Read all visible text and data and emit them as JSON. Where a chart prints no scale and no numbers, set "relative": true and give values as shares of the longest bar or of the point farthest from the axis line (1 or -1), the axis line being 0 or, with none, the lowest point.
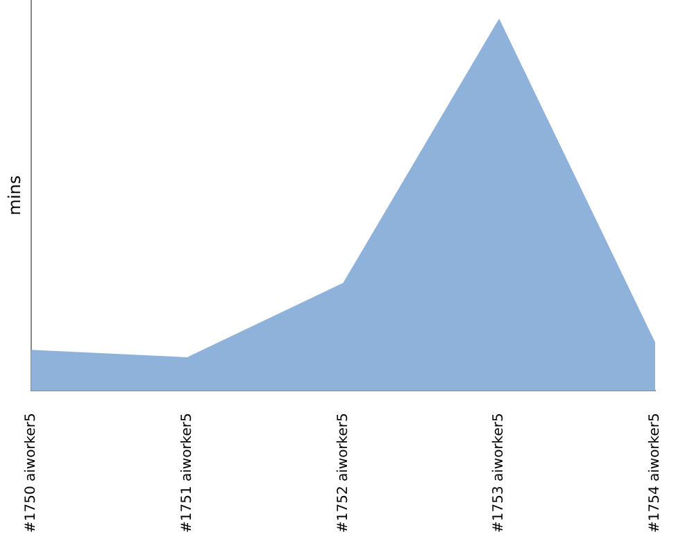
{
  "chart_data": {
    "type": "area",
    "ylabel": "mins",
    "relative": true,
    "categories": [
      "#1750 aiworker5",
      "#1751 aiworker5",
      "#1752 aiworker5",
      "#1753 aiworker5",
      "#1754 aiworker5"
    ],
    "series": [
      {
        "color": "#8fb2db",
        "values": [
          0.11,
          0.09,
          0.29,
          1,
          0.13
        ]
      }
    ],
    "grid": false,
    "legend": false
  }
}
